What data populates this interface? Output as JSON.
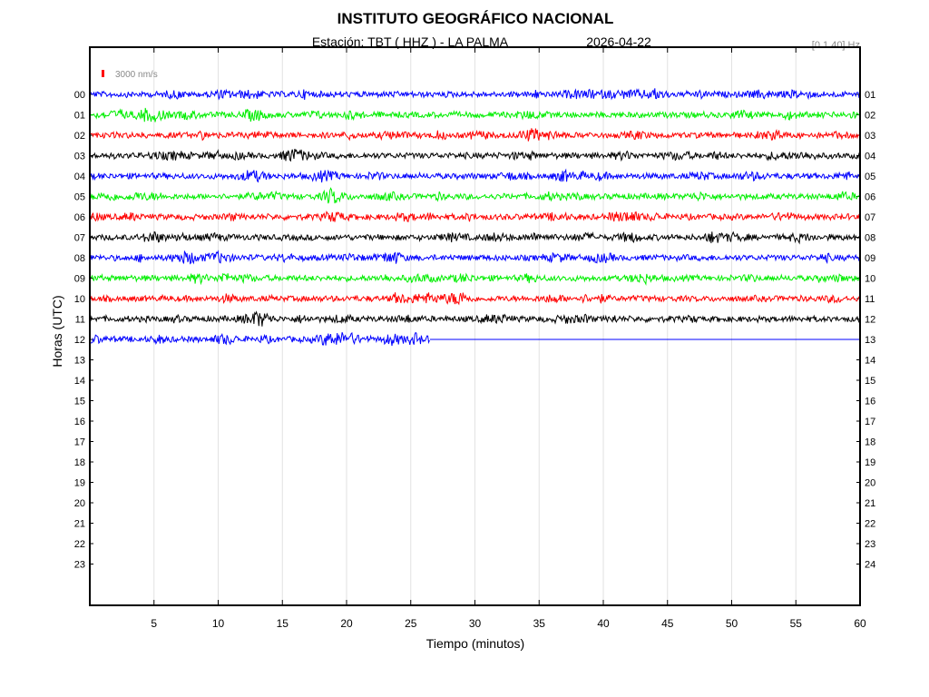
{
  "chart_data": {
    "type": "line",
    "title": "INSTITUTO GEOGRÁFICO NACIONAL",
    "subtitle": {
      "station": "Estación:  TBT ( HHZ ) - LA PALMA",
      "date": "2026-04-22",
      "filter": "[0.1 40] Hz"
    },
    "scale_label": "3000 nm/s",
    "xlabel": "Tiempo (minutos)",
    "ylabel": "Horas (UTC)",
    "xlim": [
      0,
      60
    ],
    "x_ticks": [
      "5",
      "10",
      "15",
      "20",
      "25",
      "30",
      "35",
      "40",
      "45",
      "50",
      "55",
      "60"
    ],
    "y_ticks_left": [
      "00",
      "01",
      "02",
      "03",
      "04",
      "05",
      "06",
      "07",
      "08",
      "09",
      "10",
      "11",
      "12",
      "13",
      "14",
      "15",
      "16",
      "17",
      "18",
      "19",
      "20",
      "21",
      "22",
      "23"
    ],
    "y_ticks_right": [
      "01",
      "02",
      "03",
      "04",
      "05",
      "06",
      "07",
      "08",
      "09",
      "10",
      "11",
      "12",
      "13",
      "14",
      "15",
      "16",
      "17",
      "18",
      "19",
      "20",
      "21",
      "22",
      "23",
      "24"
    ],
    "grid": true,
    "series_colors": [
      "#0000ff",
      "#00ee00",
      "#ff0000",
      "#000000"
    ],
    "traces": [
      {
        "hour": "00",
        "color": "#0000ff",
        "end_minute": 60
      },
      {
        "hour": "01",
        "color": "#00ee00",
        "end_minute": 60
      },
      {
        "hour": "02",
        "color": "#ff0000",
        "end_minute": 60
      },
      {
        "hour": "03",
        "color": "#000000",
        "end_minute": 60
      },
      {
        "hour": "04",
        "color": "#0000ff",
        "end_minute": 60
      },
      {
        "hour": "05",
        "color": "#00ee00",
        "end_minute": 60
      },
      {
        "hour": "06",
        "color": "#ff0000",
        "end_minute": 60
      },
      {
        "hour": "07",
        "color": "#000000",
        "end_minute": 60
      },
      {
        "hour": "08",
        "color": "#0000ff",
        "end_minute": 60
      },
      {
        "hour": "09",
        "color": "#00ee00",
        "end_minute": 60
      },
      {
        "hour": "10",
        "color": "#ff0000",
        "end_minute": 60
      },
      {
        "hour": "11",
        "color": "#000000",
        "end_minute": 60
      },
      {
        "hour": "12",
        "color": "#0000ff",
        "end_minute": 26.5
      }
    ]
  }
}
